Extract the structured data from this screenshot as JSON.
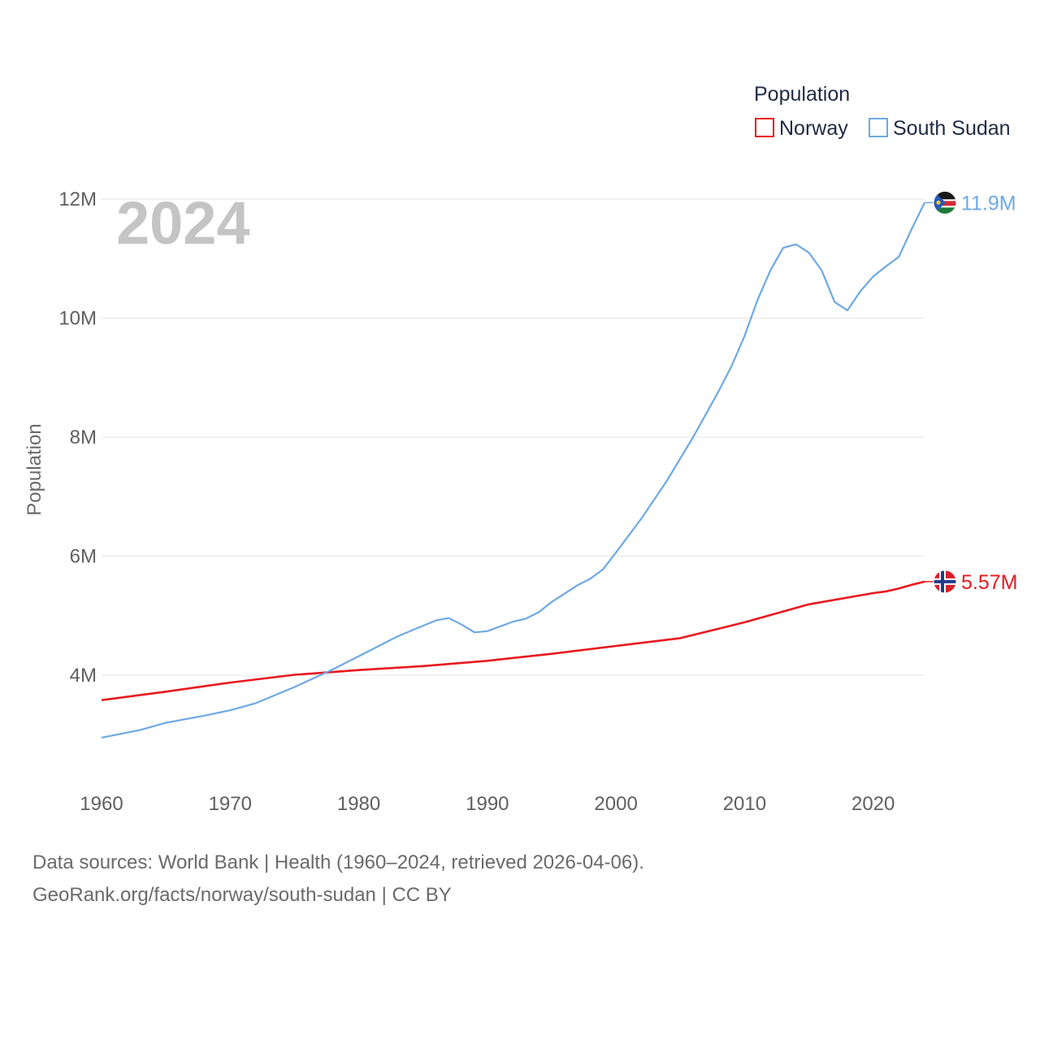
{
  "chart_data": {
    "type": "line",
    "title": "",
    "year_label": "2024",
    "xlabel": "",
    "ylabel": "Population",
    "xlim": [
      1960,
      2024
    ],
    "ylim": [
      2000000,
      12600000
    ],
    "x_ticks": [
      1960,
      1970,
      1980,
      1990,
      2000,
      2010,
      2020
    ],
    "x_tick_labels": [
      "1960",
      "1970",
      "1980",
      "1990",
      "2000",
      "2010",
      "2020"
    ],
    "y_ticks": [
      4000000,
      6000000,
      8000000,
      10000000,
      12000000
    ],
    "y_tick_labels": [
      "4M",
      "6M",
      "8M",
      "10M",
      "12M"
    ],
    "grid": true,
    "legend": {
      "title": "Population",
      "position": "top-right",
      "entries": [
        "Norway",
        "South Sudan"
      ]
    },
    "series": [
      {
        "name": "Norway",
        "color": "#e8191e",
        "end_label": "5.57M",
        "flag": "norway-flag",
        "points": [
          [
            1960,
            3581000
          ],
          [
            1965,
            3723000
          ],
          [
            1970,
            3876000
          ],
          [
            1975,
            4007000
          ],
          [
            1980,
            4086000
          ],
          [
            1985,
            4153000
          ],
          [
            1990,
            4241000
          ],
          [
            1995,
            4359000
          ],
          [
            2000,
            4491000
          ],
          [
            2005,
            4623000
          ],
          [
            2010,
            4889000
          ],
          [
            2015,
            5190000
          ],
          [
            2020,
            5379000
          ],
          [
            2021,
            5408000
          ],
          [
            2022,
            5457000
          ],
          [
            2023,
            5520000
          ],
          [
            2024,
            5572000
          ]
        ]
      },
      {
        "name": "South Sudan",
        "color": "#6ea9e3",
        "end_label": "11.9M",
        "flag": "south-sudan-flag",
        "points": [
          [
            1960,
            2950000
          ],
          [
            1963,
            3080000
          ],
          [
            1965,
            3200000
          ],
          [
            1968,
            3320000
          ],
          [
            1970,
            3410000
          ],
          [
            1972,
            3530000
          ],
          [
            1975,
            3800000
          ],
          [
            1978,
            4100000
          ],
          [
            1980,
            4320000
          ],
          [
            1983,
            4650000
          ],
          [
            1986,
            4920000
          ],
          [
            1987,
            4960000
          ],
          [
            1988,
            4850000
          ],
          [
            1989,
            4720000
          ],
          [
            1990,
            4740000
          ],
          [
            1992,
            4900000
          ],
          [
            1993,
            4950000
          ],
          [
            1994,
            5060000
          ],
          [
            1995,
            5230000
          ],
          [
            1997,
            5510000
          ],
          [
            1998,
            5620000
          ],
          [
            1999,
            5780000
          ],
          [
            2000,
            6060000
          ],
          [
            2002,
            6640000
          ],
          [
            2004,
            7280000
          ],
          [
            2006,
            8000000
          ],
          [
            2008,
            8780000
          ],
          [
            2009,
            9200000
          ],
          [
            2010,
            9700000
          ],
          [
            2011,
            10300000
          ],
          [
            2012,
            10800000
          ],
          [
            2013,
            11180000
          ],
          [
            2014,
            11240000
          ],
          [
            2015,
            11100000
          ],
          [
            2016,
            10800000
          ],
          [
            2017,
            10270000
          ],
          [
            2018,
            10130000
          ],
          [
            2019,
            10450000
          ],
          [
            2020,
            10700000
          ],
          [
            2021,
            10870000
          ],
          [
            2022,
            11030000
          ],
          [
            2023,
            11500000
          ],
          [
            2024,
            11940000
          ]
        ]
      }
    ]
  },
  "footer": {
    "line1": "Data sources: World Bank | Health (1960–2024, retrieved 2026-04-06).",
    "line2": "GeoRank.org/facts/norway/south-sudan | CC BY"
  }
}
